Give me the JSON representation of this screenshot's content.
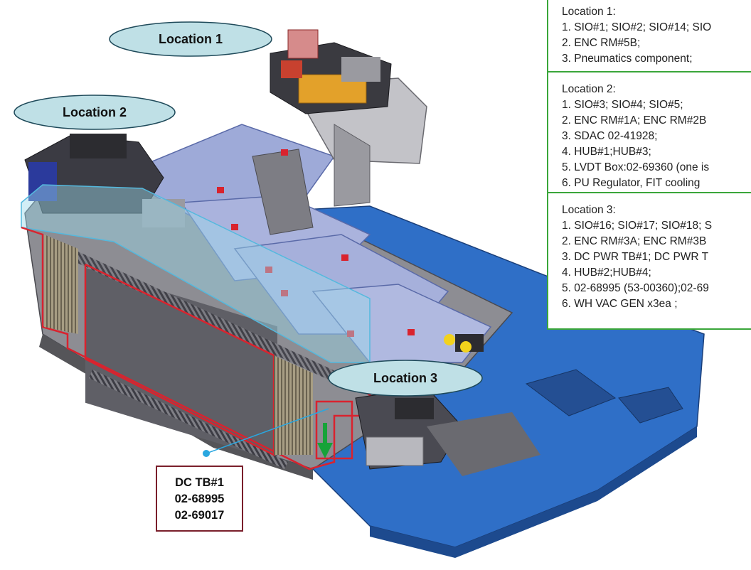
{
  "callouts": {
    "location1": "Location 1",
    "location2": "Location 2",
    "location3": "Location 3"
  },
  "info_panel": {
    "sections": [
      {
        "title": "Location 1:",
        "items": [
          "1. SIO#1; SIO#2; SIO#14; SIO",
          "2. ENC RM#5B;",
          "3. Pneumatics component;"
        ]
      },
      {
        "title": "Location 2:",
        "items": [
          "1. SIO#3; SIO#4; SIO#5;",
          "2. ENC RM#1A; ENC RM#2B",
          "3. SDAC 02-41928;",
          "4. HUB#1;HUB#3;",
          "5. LVDT Box:02-69360 (one is",
          "6. PU Regulator, FIT cooling"
        ]
      },
      {
        "title": "Location 3:",
        "items": [
          "1. SIO#16; SIO#17; SIO#18; S",
          "2. ENC RM#3A; ENC RM#3B",
          "3. DC PWR TB#1;  DC PWR T",
          "4. HUB#2;HUB#4;",
          "5. 02-68995 (53-00360);02-69",
          "6. WH VAC GEN x3ea ;"
        ]
      }
    ]
  },
  "dc_label": {
    "lines": [
      "DC TB#1",
      "02-68995",
      "02-69017"
    ]
  },
  "colors": {
    "callout_fill": "#bfe0e6",
    "callout_stroke": "#1f4a5a",
    "panel_border": "#3aa63a",
    "outline_red": "#d9232e",
    "leader": "#2aa7e0",
    "arrow_green": "#16a339",
    "base_blue": "#2f6fc7",
    "cover_blue": "#9eaad8",
    "dc_box_border": "#7a1f2b"
  }
}
